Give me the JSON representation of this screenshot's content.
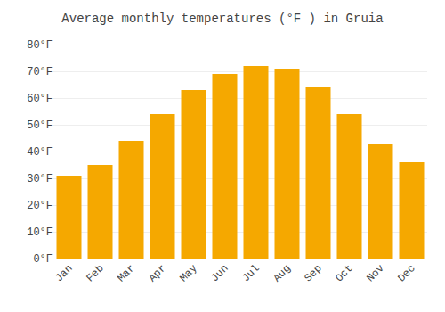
{
  "chart_data": {
    "type": "bar",
    "title": "Average monthly temperatures (°F ) in Gruia",
    "categories": [
      "Jan",
      "Feb",
      "Mar",
      "Apr",
      "May",
      "Jun",
      "Jul",
      "Aug",
      "Sep",
      "Oct",
      "Nov",
      "Dec"
    ],
    "values": [
      31,
      35,
      44,
      54,
      63,
      69,
      72,
      71,
      64,
      54,
      43,
      36
    ],
    "color": "#F5A800",
    "ylim": [
      0,
      80
    ],
    "yticks": [
      {
        "value": 0,
        "label": "0°F"
      },
      {
        "value": 10,
        "label": "10°F"
      },
      {
        "value": 20,
        "label": "20°F"
      },
      {
        "value": 30,
        "label": "30°F"
      },
      {
        "value": 40,
        "label": "40°F"
      },
      {
        "value": 50,
        "label": "50°F"
      },
      {
        "value": 60,
        "label": "60°F"
      },
      {
        "value": 70,
        "label": "70°F"
      },
      {
        "value": 80,
        "label": "80°F"
      }
    ],
    "grid": true
  }
}
